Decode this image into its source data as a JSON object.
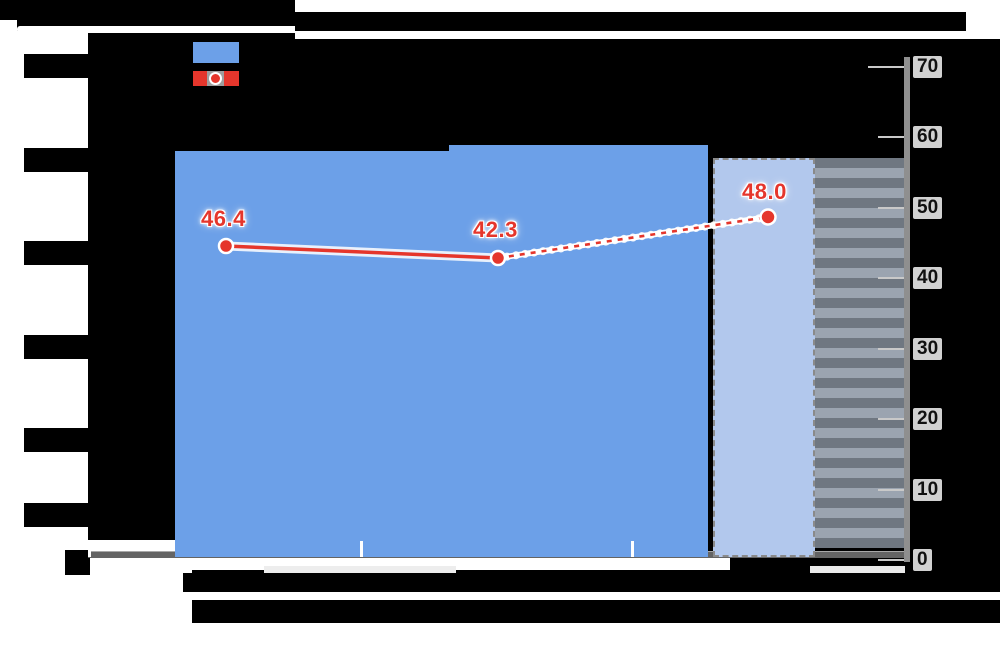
{
  "legend": {
    "items": [
      {
        "name": "bar-series",
        "swatch_color": "#6CA0E8",
        "label": ""
      },
      {
        "name": "line-series",
        "swatch_color": "#E5362C",
        "label": ""
      }
    ]
  },
  "right_axis": {
    "ticks": [
      {
        "label": "70",
        "value": 70
      },
      {
        "label": "60",
        "value": 60
      },
      {
        "label": "50",
        "value": 50
      },
      {
        "label": "40",
        "value": 40
      },
      {
        "label": "30",
        "value": 30
      },
      {
        "label": "20",
        "value": 20
      },
      {
        "label": "10",
        "value": 10
      },
      {
        "label": "0",
        "value": 0
      }
    ],
    "min": 0,
    "max": 70
  },
  "data_labels": {
    "p1": "46.4",
    "p2": "42.3",
    "p3": "48.0"
  },
  "colors": {
    "bar": "#6CA0E8",
    "bar_forecast_fill": "#B2C8ED",
    "bar_forecast_border": "#8a8a8a",
    "line": "#E5362C",
    "axis": "#8f8f8f",
    "hatch_dark": "#6F7781",
    "hatch_light": "#9BA4B0"
  },
  "chart_data": {
    "type": "bar",
    "subtype": "combo-bar-line",
    "categories": [
      "",
      "",
      ""
    ],
    "series": [
      {
        "name": "bars",
        "type": "bar",
        "values": [
          58,
          59,
          57
        ],
        "note": "values estimated from right axis; third bar drawn with dashed border (forecast style) plus gray hatched overlay band"
      },
      {
        "name": "line",
        "type": "line",
        "values": [
          46.4,
          42.3,
          48.0
        ],
        "note": "last segment dashed (projection style); values shown as red data labels"
      }
    ],
    "title": "",
    "xlabel": "",
    "ylabel": "",
    "ylim": [
      0,
      70
    ],
    "grid": false,
    "legend_position": "top-left",
    "y_axis_side": "right"
  }
}
